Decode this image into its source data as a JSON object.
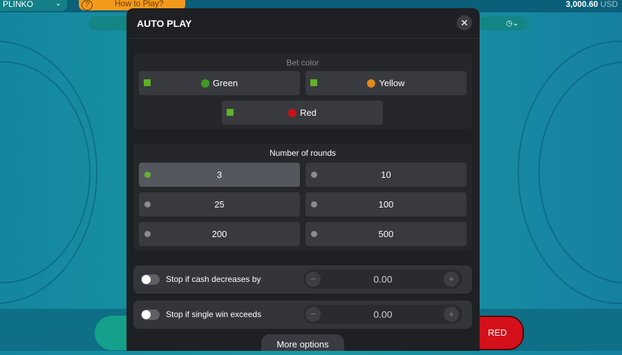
{
  "topbar": {
    "game": "PLINKO",
    "how_to_play": "How to Play?",
    "balance": "3,000.60",
    "currency": "USD"
  },
  "modal": {
    "title": "AUTO PLAY",
    "bet_color": {
      "title": "Bet color",
      "options": [
        {
          "label": "Green",
          "color": "#3f9a1f"
        },
        {
          "label": "Yellow",
          "color": "#e08a1c"
        },
        {
          "label": "Red",
          "color": "#d11014"
        }
      ]
    },
    "rounds": {
      "title": "Number of rounds",
      "options": [
        "3",
        "10",
        "25",
        "100",
        "200",
        "500"
      ],
      "selected": "3"
    },
    "stops": [
      {
        "label": "Stop if cash decreases by",
        "value": "0.00",
        "enabled": false
      },
      {
        "label": "Stop if single win exceeds",
        "value": "0.00",
        "enabled": false
      }
    ],
    "more_options": "More options"
  },
  "bottom": {
    "red_button": "RED"
  }
}
